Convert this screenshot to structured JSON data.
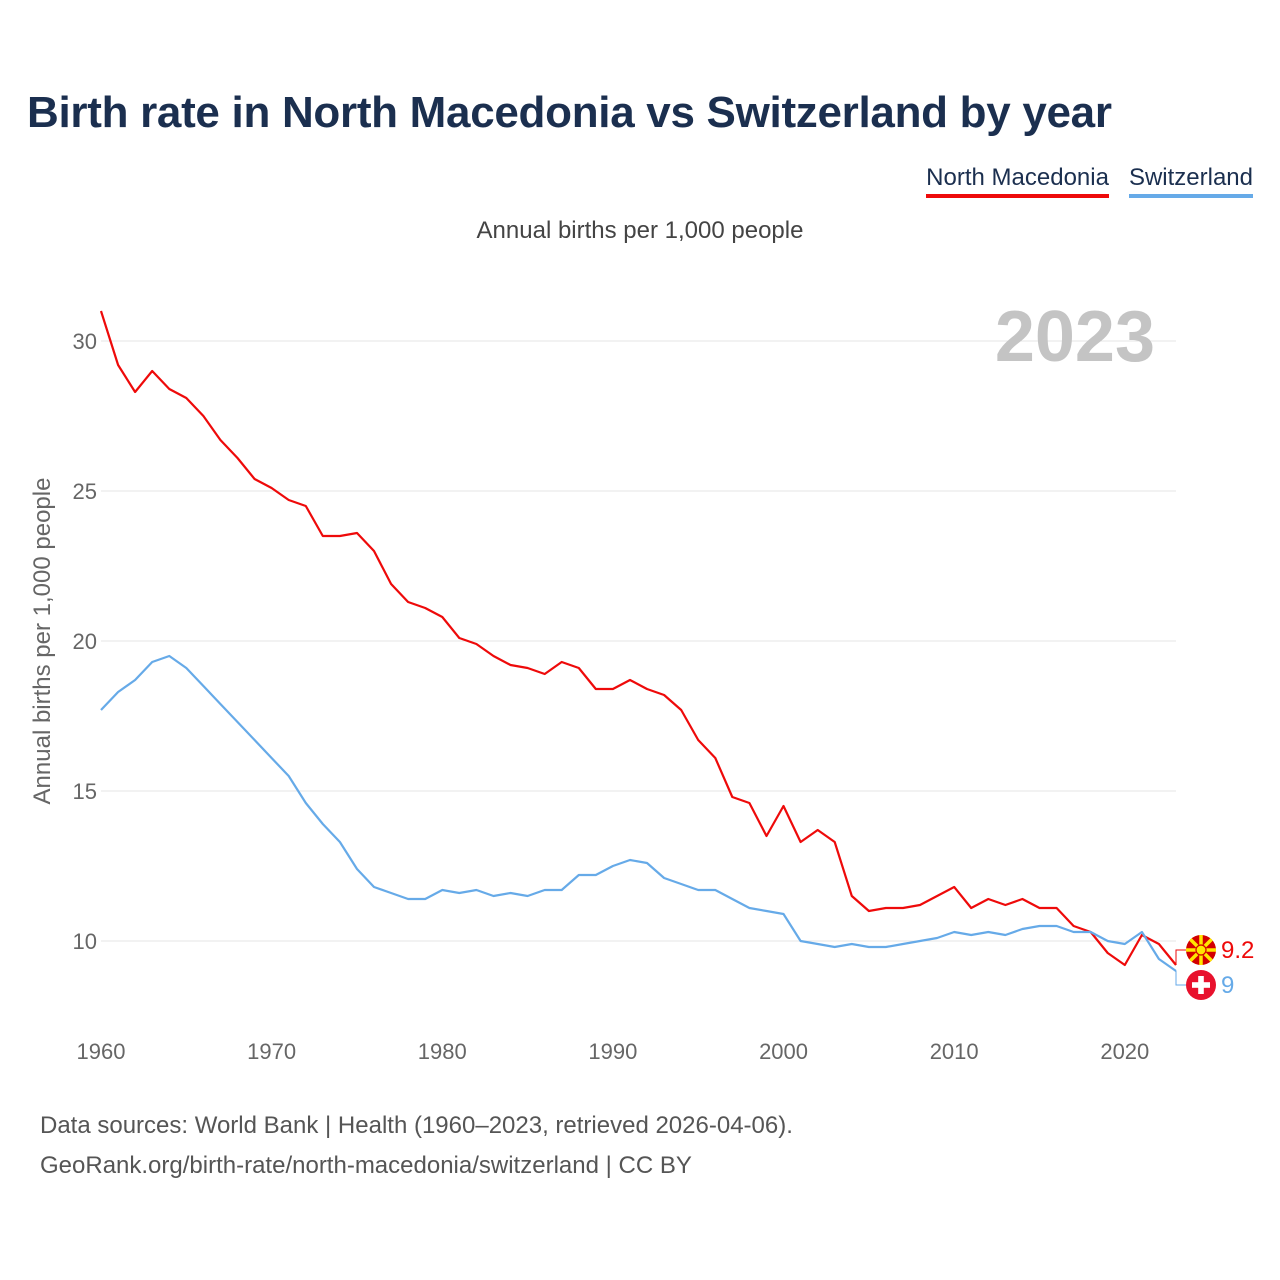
{
  "title": "Birth rate in North Macedonia vs Switzerland by year",
  "subtitle": "Annual births per 1,000 people",
  "legend": [
    {
      "label": "North Macedonia",
      "color": "#ee0a0a"
    },
    {
      "label": "Switzerland",
      "color": "#66aae8"
    }
  ],
  "year_label": "2023",
  "footer": {
    "line1": "Data sources: World Bank | Health (1960–2023, retrieved 2026-04-06).",
    "line2": "GeoRank.org/birth-rate/north-macedonia/switzerland | CC BY"
  },
  "chart_data": {
    "type": "line",
    "title": "Birth rate in North Macedonia vs Switzerland by year",
    "ylabel": "Annual births per 1,000 people",
    "xlabel": "",
    "xlim": [
      1960,
      2023
    ],
    "ylim": [
      8.5,
      31
    ],
    "x_ticks": [
      1960,
      1970,
      1980,
      1990,
      2000,
      2010,
      2020
    ],
    "y_ticks": [
      10,
      15,
      20,
      25,
      30
    ],
    "grid": true,
    "x": [
      1960,
      1961,
      1962,
      1963,
      1964,
      1965,
      1966,
      1967,
      1968,
      1969,
      1970,
      1971,
      1972,
      1973,
      1974,
      1975,
      1976,
      1977,
      1978,
      1979,
      1980,
      1981,
      1982,
      1983,
      1984,
      1985,
      1986,
      1987,
      1988,
      1989,
      1990,
      1991,
      1992,
      1993,
      1994,
      1995,
      1996,
      1997,
      1998,
      1999,
      2000,
      2001,
      2002,
      2003,
      2004,
      2005,
      2006,
      2007,
      2008,
      2009,
      2010,
      2011,
      2012,
      2013,
      2014,
      2015,
      2016,
      2017,
      2018,
      2019,
      2020,
      2021,
      2022,
      2023
    ],
    "series": [
      {
        "name": "North Macedonia",
        "color": "#ee0a0a",
        "end_label": "9.2",
        "values": [
          31.0,
          29.2,
          28.3,
          29.0,
          28.4,
          28.1,
          27.5,
          26.7,
          26.1,
          25.4,
          25.1,
          24.7,
          24.5,
          23.5,
          23.5,
          23.6,
          23.0,
          21.9,
          21.3,
          21.1,
          20.8,
          20.1,
          19.9,
          19.5,
          19.2,
          19.1,
          18.9,
          19.3,
          19.1,
          18.4,
          18.4,
          18.7,
          18.4,
          18.2,
          17.7,
          16.7,
          16.1,
          14.8,
          14.6,
          13.5,
          14.5,
          13.3,
          13.7,
          13.3,
          11.5,
          11.0,
          11.1,
          11.1,
          11.2,
          11.5,
          11.8,
          11.1,
          11.4,
          11.2,
          11.4,
          11.1,
          11.1,
          10.5,
          10.3,
          9.6,
          9.2,
          10.2,
          9.9,
          9.2
        ]
      },
      {
        "name": "Switzerland",
        "color": "#66aae8",
        "end_label": "9",
        "values": [
          17.7,
          18.3,
          18.7,
          19.3,
          19.5,
          19.1,
          18.5,
          17.9,
          17.3,
          16.7,
          16.1,
          15.5,
          14.6,
          13.9,
          13.3,
          12.4,
          11.8,
          11.6,
          11.4,
          11.4,
          11.7,
          11.6,
          11.7,
          11.5,
          11.6,
          11.5,
          11.7,
          11.7,
          12.2,
          12.2,
          12.5,
          12.7,
          12.6,
          12.1,
          11.9,
          11.7,
          11.7,
          11.4,
          11.1,
          11.0,
          10.9,
          10.0,
          9.9,
          9.8,
          9.9,
          9.8,
          9.8,
          9.9,
          10.0,
          10.1,
          10.3,
          10.2,
          10.3,
          10.2,
          10.4,
          10.5,
          10.5,
          10.3,
          10.3,
          10.0,
          9.9,
          10.3,
          9.4,
          9.0
        ]
      }
    ]
  }
}
